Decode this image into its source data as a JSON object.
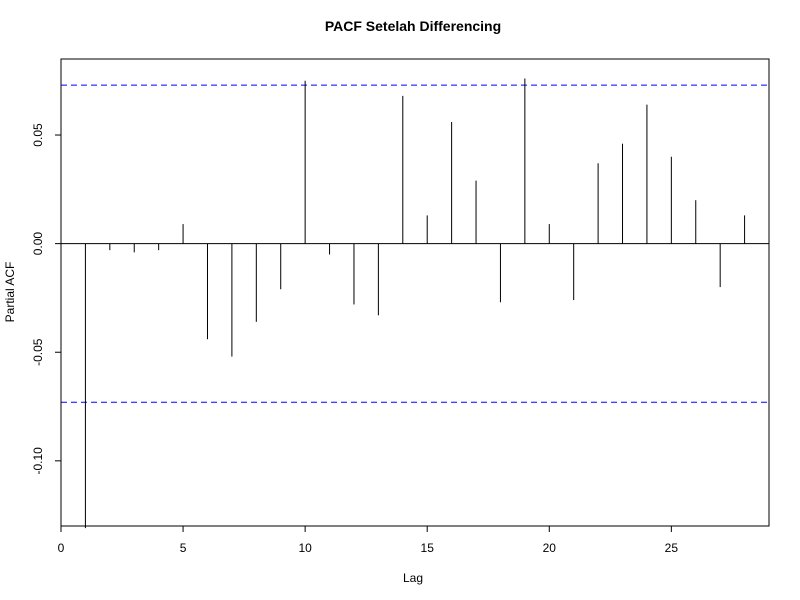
{
  "chart_data": {
    "type": "bar",
    "title": "PACF Setelah Differencing",
    "xlabel": "Lag",
    "ylabel": "Partial ACF",
    "xlim": [
      0,
      29
    ],
    "ylim": [
      -0.13,
      0.085
    ],
    "x_ticks": [
      0,
      5,
      10,
      15,
      20,
      25
    ],
    "x_tick_labels": [
      "0",
      "5",
      "10",
      "15",
      "20",
      "25"
    ],
    "y_ticks": [
      -0.1,
      -0.05,
      0.0,
      0.05
    ],
    "y_tick_labels": [
      "-0.10",
      "-0.05",
      "0.00",
      "0.05"
    ],
    "confidence_limit": 0.073,
    "confidence_line_color": "#0000ff",
    "grid": false,
    "lags": [
      1,
      2,
      3,
      4,
      5,
      6,
      7,
      8,
      9,
      10,
      11,
      12,
      13,
      14,
      15,
      16,
      17,
      18,
      19,
      20,
      21,
      22,
      23,
      24,
      25,
      26,
      27,
      28
    ],
    "values": [
      -0.131,
      -0.003,
      -0.004,
      -0.003,
      0.009,
      -0.044,
      -0.052,
      -0.036,
      -0.021,
      0.075,
      -0.005,
      -0.028,
      -0.033,
      0.068,
      0.013,
      0.056,
      0.029,
      -0.027,
      0.076,
      0.009,
      -0.026,
      0.037,
      0.046,
      0.064,
      0.04,
      0.02,
      -0.02,
      0.013
    ]
  }
}
